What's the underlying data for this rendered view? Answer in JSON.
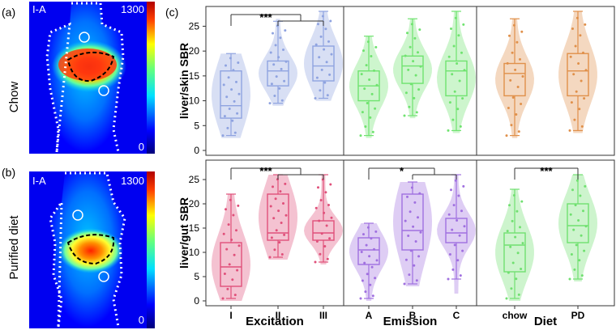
{
  "panels": {
    "a": {
      "letter": "(a)",
      "side_label": "Chow",
      "image_label": "I-A",
      "scale_max": "1300",
      "scale_min": "0"
    },
    "b": {
      "letter": "(b)",
      "side_label": "Purified diet",
      "image_label": "I-A",
      "scale_max": "1300",
      "scale_min": "0"
    },
    "c": {
      "letter": "(c)"
    }
  },
  "colors": {
    "excitation_top": "#8fa3e0",
    "emission_top": "#6fe36f",
    "diet_top": "#e0904a",
    "excitation_bottom": "#e0507a",
    "emission_bottom": "#a070e0",
    "diet_bottom": "#70e070"
  },
  "chart_data": {
    "type": "violin",
    "row_labels": [
      "liver/skin SBR",
      "liver/gut SBR"
    ],
    "group_labels": [
      "Excitation",
      "Emission",
      "Diet"
    ],
    "categories": [
      "I",
      "II",
      "III",
      "A",
      "B",
      "C",
      "chow",
      "PD"
    ],
    "ylim": [
      0,
      28
    ],
    "yticks": [
      0,
      5,
      10,
      15,
      20,
      25
    ],
    "rows": [
      {
        "ylabel": "liver/skin SBR",
        "boxes": [
          {
            "cat": "I",
            "min": 3,
            "q1": 6.5,
            "median": 9,
            "q3": 16,
            "max": 19.5,
            "vmin": 2.5,
            "vmax": 19.5
          },
          {
            "cat": "II",
            "min": 9.5,
            "q1": 13,
            "median": 16,
            "q3": 18,
            "max": 26,
            "vmin": 9,
            "vmax": 26.5
          },
          {
            "cat": "III",
            "min": 10.5,
            "q1": 14,
            "median": 17,
            "q3": 21,
            "max": 28,
            "vmin": 10,
            "vmax": 28
          },
          {
            "cat": "A",
            "min": 3,
            "q1": 10,
            "median": 13,
            "q3": 16,
            "max": 23,
            "vmin": 2.5,
            "vmax": 23
          },
          {
            "cat": "B",
            "min": 7,
            "q1": 13.5,
            "median": 17,
            "q3": 19,
            "max": 26.5,
            "vmin": 6.5,
            "vmax": 26.5
          },
          {
            "cat": "C",
            "min": 4,
            "q1": 11,
            "median": 16,
            "q3": 18,
            "max": 28,
            "vmin": 3.5,
            "vmax": 28
          },
          {
            "cat": "chow",
            "min": 3,
            "q1": 11,
            "median": 15.5,
            "q3": 17.5,
            "max": 26.5,
            "vmin": 2.5,
            "vmax": 26.5
          },
          {
            "cat": "PD",
            "min": 4,
            "q1": 11,
            "median": 16,
            "q3": 19.5,
            "max": 28,
            "vmin": 3.5,
            "vmax": 28
          }
        ],
        "significance": [
          {
            "label": "***",
            "from": "I",
            "to": [
              "II",
              "III"
            ]
          }
        ]
      },
      {
        "ylabel": "liver/gut SBR",
        "boxes": [
          {
            "cat": "I",
            "min": 0.5,
            "q1": 3,
            "median": 7,
            "q3": 12,
            "max": 22,
            "vmin": 0,
            "vmax": 22
          },
          {
            "cat": "II",
            "min": 9,
            "q1": 12.5,
            "median": 14,
            "q3": 22,
            "max": 26,
            "vmin": 8.5,
            "vmax": 26
          },
          {
            "cat": "III",
            "min": 8,
            "q1": 12.5,
            "median": 14,
            "q3": 16.5,
            "max": 26,
            "vmin": 7.5,
            "vmax": 26
          },
          {
            "cat": "A",
            "min": 0.5,
            "q1": 7.5,
            "median": 10.5,
            "q3": 13,
            "max": 16,
            "vmin": 0,
            "vmax": 16
          },
          {
            "cat": "B",
            "min": 3.5,
            "q1": 10.5,
            "median": 14.5,
            "q3": 22,
            "max": 24.5,
            "vmin": 3,
            "vmax": 24.5
          },
          {
            "cat": "C",
            "min": 4.5,
            "q1": 12,
            "median": 14,
            "q3": 17,
            "max": 26,
            "vmin": 1.5,
            "vmax": 26
          },
          {
            "cat": "chow",
            "min": 0.5,
            "q1": 6,
            "median": 11.5,
            "q3": 14,
            "max": 23,
            "vmin": 0,
            "vmax": 23
          },
          {
            "cat": "PD",
            "min": 4.5,
            "q1": 12,
            "median": 15.5,
            "q3": 20,
            "max": 26,
            "vmin": 4,
            "vmax": 26
          }
        ],
        "significance": [
          {
            "label": "***",
            "from": "I",
            "to": [
              "II",
              "III"
            ]
          },
          {
            "label": "*",
            "from": "A",
            "to": [
              "B",
              "C"
            ]
          },
          {
            "label": "***",
            "from": "chow",
            "to": [
              "PD"
            ]
          }
        ]
      }
    ]
  }
}
